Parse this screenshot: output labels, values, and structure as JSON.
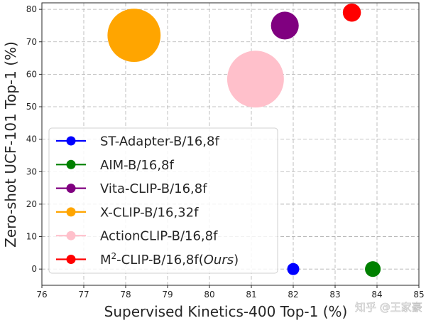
{
  "chart_data": {
    "type": "scatter",
    "xlabel": "Supervised Kinetics-400 Top-1 (%)",
    "ylabel": "Zero-shot UCF-101 Top-1 (%)",
    "xlim": [
      76,
      85
    ],
    "ylim": [
      -5,
      82
    ],
    "xticks": [
      "76",
      "77",
      "78",
      "79",
      "80",
      "81",
      "82",
      "83",
      "84",
      "85"
    ],
    "yticks": [
      "0",
      "10",
      "20",
      "30",
      "40",
      "50",
      "60",
      "70",
      "80"
    ],
    "grid": true,
    "legend_position": "lower-left",
    "series": [
      {
        "name": "ST-Adapter-B/16,8f",
        "x": 82.0,
        "y": 0,
        "size": 1,
        "color": "#0000ff"
      },
      {
        "name": "AIM-B/16,8f",
        "x": 83.9,
        "y": 0,
        "size": 1.3,
        "color": "#008000"
      },
      {
        "name": "Vita-CLIP-B/16,8f",
        "x": 81.8,
        "y": 75,
        "size": 2.3,
        "color": "#800080"
      },
      {
        "name": "X-CLIP-B/16,32f",
        "x": 78.2,
        "y": 72,
        "size": 4.4,
        "color": "#ffa500"
      },
      {
        "name": "ActionCLIP-B/16,8f",
        "x": 81.1,
        "y": 58.5,
        "size": 4.7,
        "color": "#ffc0cb"
      },
      {
        "name": "M²-CLIP-B/16,8f(Ours)",
        "name_main": "M",
        "name_sup": "2",
        "name_rest": "-CLIP-B/16,8f(",
        "name_ital": "Ours",
        "name_close": ")",
        "x": 83.4,
        "y": 79,
        "size": 1.5,
        "color": "#ff0000"
      }
    ]
  },
  "watermark": "知乎 @王家豪"
}
